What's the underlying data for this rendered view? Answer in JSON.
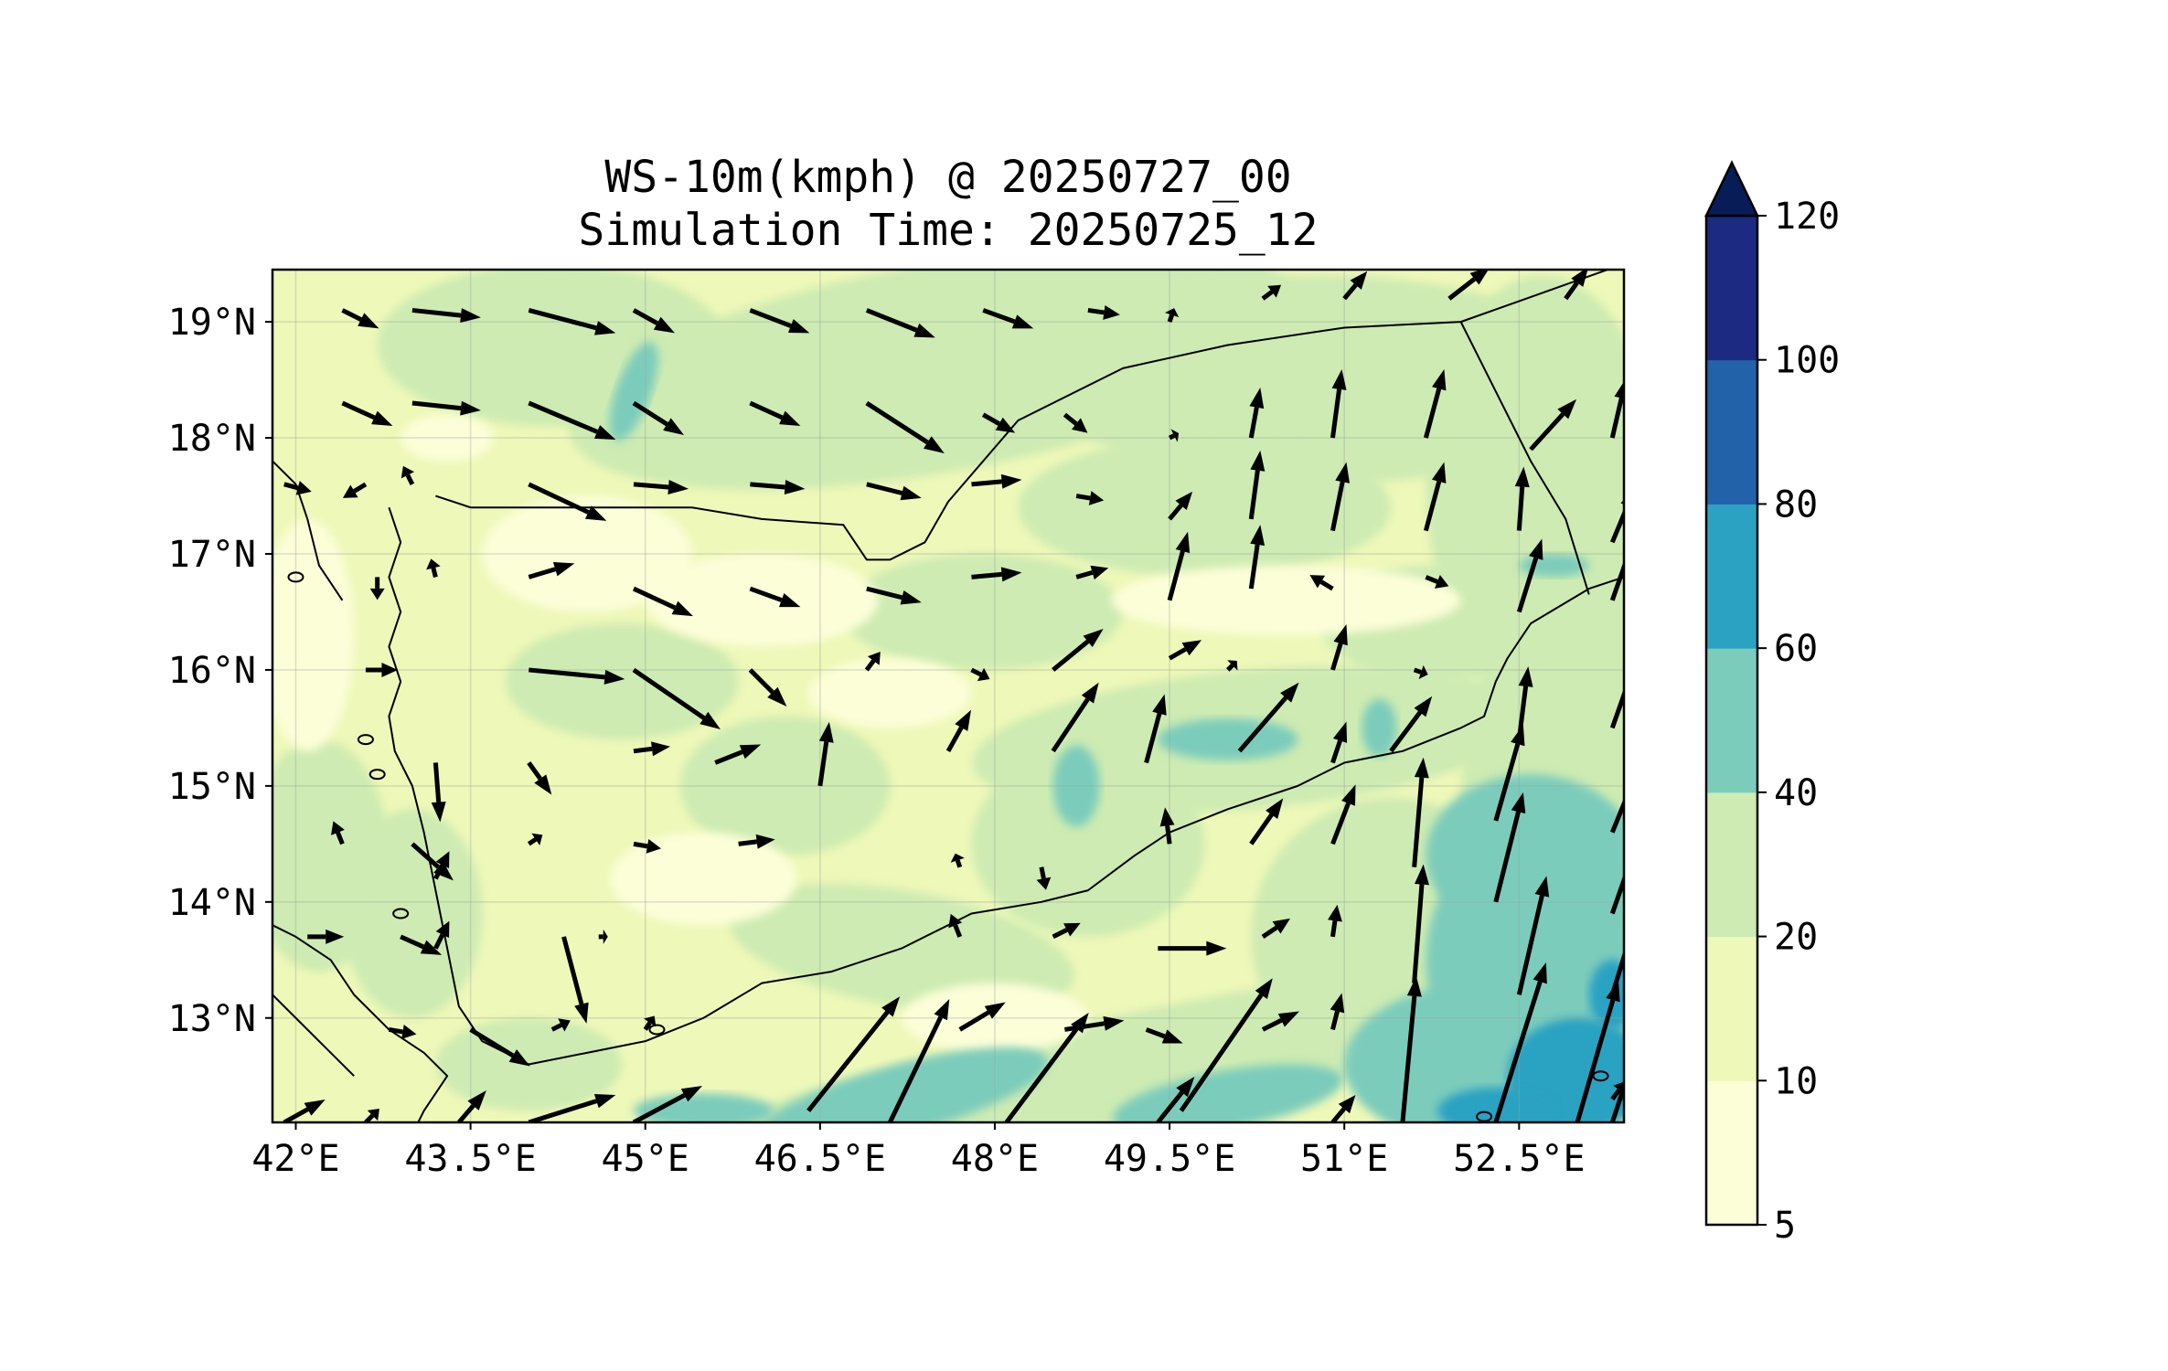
{
  "title": "WS-10m(kmph) @ 20250727_00",
  "subtitle": "Simulation Time: 20250725_12",
  "map": {
    "lon_range": [
      41.8,
      53.4
    ],
    "lat_range": [
      12.1,
      19.45
    ],
    "lon_ticks": [
      42,
      43.5,
      45,
      46.5,
      48,
      49.5,
      51,
      52.5
    ],
    "lon_tick_labels": [
      "42°E",
      "43.5°E",
      "45°E",
      "46.5°E",
      "48°E",
      "49.5°E",
      "51°E",
      "52.5°E"
    ],
    "lat_ticks": [
      19,
      18,
      17,
      16,
      15,
      14,
      13
    ],
    "lat_tick_labels": [
      "19°N",
      "18°N",
      "17°N",
      "16°N",
      "15°N",
      "14°N",
      "13°N"
    ],
    "grid": true,
    "fill_levels_kmph": [
      5,
      10,
      20,
      40,
      60,
      80,
      100,
      120
    ],
    "fill_colors": [
      "#fcfed8",
      "#eef8b8",
      "#cdebb2",
      "#7cccbc",
      "#2ca2c2",
      "#2262a8",
      "#1c2a82",
      "#081d58"
    ],
    "wind_vectors_note": "quiver arrows, direction toward"
  },
  "colorbar": {
    "levels": [
      5,
      10,
      20,
      40,
      60,
      80,
      100,
      120
    ],
    "tick_labels": [
      "5",
      "10",
      "20",
      "40",
      "60",
      "80",
      "100",
      "120"
    ],
    "colors": [
      "#fcfed8",
      "#eef8b8",
      "#cdebb2",
      "#7cccbc",
      "#2ca2c2",
      "#2262a8",
      "#1c2a82"
    ],
    "extend_color": "#081d58",
    "extend": "max"
  }
}
